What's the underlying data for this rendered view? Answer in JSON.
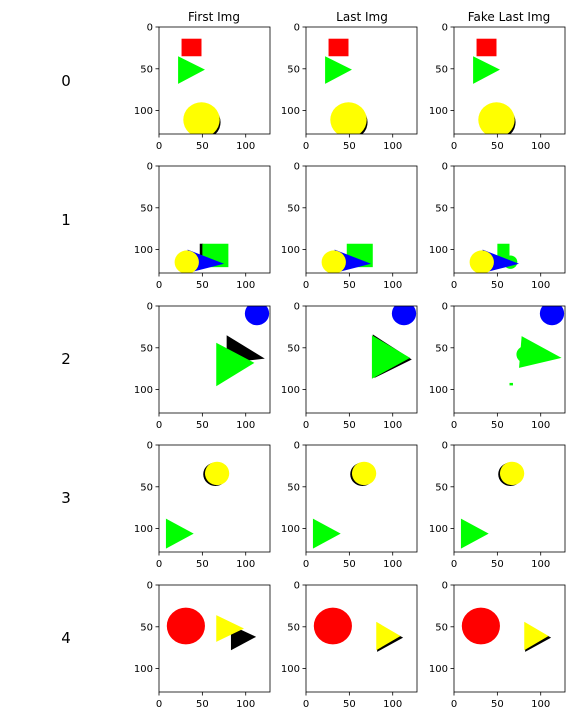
{
  "columns": [
    "First Img",
    "Last Img",
    "Fake Last Img"
  ],
  "rows": [
    "0",
    "1",
    "2",
    "3",
    "4"
  ],
  "axis": {
    "x_range": [
      0,
      128
    ],
    "y_range": [
      0,
      128
    ],
    "x_ticks": [
      0,
      50,
      100
    ],
    "y_ticks": [
      0,
      50,
      100
    ]
  },
  "colors": {
    "red": "#ff0000",
    "green": "#00ff00",
    "yellow": "#ffff00",
    "blue": "#0000ff",
    "black": "#000000"
  },
  "panels": [
    [
      [
        {
          "type": "rect",
          "color": "red",
          "x": 26,
          "y": 14,
          "w": 23,
          "h": 21
        },
        {
          "type": "tri",
          "color": "green",
          "pts": [
            [
              22,
              35
            ],
            [
              22,
              68
            ],
            [
              53,
              51
            ]
          ]
        },
        {
          "type": "circle",
          "color": "black",
          "cx": 51,
          "cy": 114,
          "r": 20
        },
        {
          "type": "circle",
          "color": "yellow",
          "cx": 49,
          "cy": 111,
          "r": 21
        }
      ],
      [
        {
          "type": "rect",
          "color": "red",
          "x": 26,
          "y": 14,
          "w": 23,
          "h": 21
        },
        {
          "type": "tri",
          "color": "green",
          "pts": [
            [
              22,
              35
            ],
            [
              22,
              68
            ],
            [
              53,
              51
            ]
          ]
        },
        {
          "type": "circle",
          "color": "black",
          "cx": 51,
          "cy": 114,
          "r": 20
        },
        {
          "type": "circle",
          "color": "yellow",
          "cx": 49,
          "cy": 111,
          "r": 21
        }
      ],
      [
        {
          "type": "rect",
          "color": "red",
          "x": 26,
          "y": 14,
          "w": 23,
          "h": 21
        },
        {
          "type": "tri",
          "color": "green",
          "pts": [
            [
              22,
              35
            ],
            [
              22,
              68
            ],
            [
              53,
              51
            ]
          ]
        },
        {
          "type": "circle",
          "color": "black",
          "cx": 51,
          "cy": 114,
          "r": 20
        },
        {
          "type": "circle",
          "color": "yellow",
          "cx": 49,
          "cy": 111,
          "r": 21
        }
      ]
    ],
    [
      [
        {
          "type": "rect",
          "color": "black",
          "x": 47,
          "y": 93,
          "w": 4,
          "h": 30
        },
        {
          "type": "rect",
          "color": "green",
          "x": 50,
          "y": 93,
          "w": 30,
          "h": 28
        },
        {
          "type": "tri",
          "color": "blue",
          "pts": [
            [
              33,
              100
            ],
            [
              33,
              128
            ],
            [
              75,
              117
            ]
          ]
        },
        {
          "type": "circle",
          "color": "yellow",
          "cx": 32,
          "cy": 115,
          "r": 14
        }
      ],
      [
        {
          "type": "rect",
          "color": "green",
          "x": 47,
          "y": 93,
          "w": 30,
          "h": 28
        },
        {
          "type": "tri",
          "color": "blue",
          "pts": [
            [
              33,
              100
            ],
            [
              33,
              128
            ],
            [
              75,
              117
            ]
          ]
        },
        {
          "type": "circle",
          "color": "yellow",
          "cx": 32,
          "cy": 115,
          "r": 14
        }
      ],
      [
        {
          "type": "rect",
          "color": "green",
          "x": 50,
          "y": 93,
          "w": 14,
          "h": 20
        },
        {
          "type": "circle",
          "color": "green",
          "cx": 65,
          "cy": 115,
          "r": 8
        },
        {
          "type": "tri",
          "color": "blue",
          "pts": [
            [
              33,
              100
            ],
            [
              33,
              128
            ],
            [
              75,
              117
            ]
          ]
        },
        {
          "type": "circle",
          "color": "yellow",
          "cx": 32,
          "cy": 115,
          "r": 14
        }
      ]
    ],
    [
      [
        {
          "type": "circle",
          "color": "blue",
          "cx": 113,
          "cy": 9,
          "r": 14
        },
        {
          "type": "tri",
          "color": "black",
          "pts": [
            [
              78,
              35
            ],
            [
              78,
              68
            ],
            [
              122,
              63
            ]
          ]
        },
        {
          "type": "tri",
          "color": "green",
          "pts": [
            [
              66,
              44
            ],
            [
              66,
              96
            ],
            [
              110,
              68
            ]
          ]
        }
      ],
      [
        {
          "type": "circle",
          "color": "blue",
          "cx": 113,
          "cy": 9,
          "r": 14
        },
        {
          "type": "tri",
          "color": "black",
          "pts": [
            [
              77,
              34
            ],
            [
              79,
              86
            ],
            [
              122,
              64
            ]
          ]
        },
        {
          "type": "tri",
          "color": "green",
          "pts": [
            [
              76,
              35
            ],
            [
              76,
              87
            ],
            [
              120,
              62
            ]
          ]
        }
      ],
      [
        {
          "type": "circle",
          "color": "blue",
          "cx": 113,
          "cy": 9,
          "r": 14
        },
        {
          "type": "tri",
          "color": "green",
          "pts": [
            [
              78,
              36
            ],
            [
              75,
              74
            ],
            [
              124,
              62
            ]
          ]
        },
        {
          "type": "circle",
          "color": "green",
          "cx": 82,
          "cy": 58,
          "r": 10
        },
        {
          "type": "rect",
          "color": "green",
          "x": 64,
          "y": 92,
          "w": 4,
          "h": 3
        }
      ]
    ],
    [
      [
        {
          "type": "circle",
          "color": "black",
          "cx": 65,
          "cy": 35,
          "r": 14
        },
        {
          "type": "circle",
          "color": "yellow",
          "cx": 67,
          "cy": 34,
          "r": 14
        },
        {
          "type": "tri",
          "color": "green",
          "pts": [
            [
              8,
              88
            ],
            [
              8,
              124
            ],
            [
              40,
              106
            ]
          ]
        }
      ],
      [
        {
          "type": "circle",
          "color": "black",
          "cx": 65,
          "cy": 35,
          "r": 14
        },
        {
          "type": "circle",
          "color": "yellow",
          "cx": 67,
          "cy": 34,
          "r": 14
        },
        {
          "type": "tri",
          "color": "green",
          "pts": [
            [
              8,
              88
            ],
            [
              8,
              124
            ],
            [
              40,
              106
            ]
          ]
        }
      ],
      [
        {
          "type": "circle",
          "color": "black",
          "cx": 65,
          "cy": 35,
          "r": 14
        },
        {
          "type": "circle",
          "color": "yellow",
          "cx": 67,
          "cy": 34,
          "r": 14
        },
        {
          "type": "tri",
          "color": "green",
          "pts": [
            [
              8,
              88
            ],
            [
              8,
              124
            ],
            [
              40,
              106
            ]
          ]
        }
      ]
    ],
    [
      [
        {
          "type": "circle",
          "color": "red",
          "cx": 31,
          "cy": 49,
          "r": 22
        },
        {
          "type": "tri",
          "color": "black",
          "pts": [
            [
              83,
              48
            ],
            [
              83,
              78
            ],
            [
              112,
              62
            ]
          ]
        },
        {
          "type": "tri",
          "color": "yellow",
          "pts": [
            [
              66,
              36
            ],
            [
              66,
              68
            ],
            [
              98,
              52
            ]
          ]
        }
      ],
      [
        {
          "type": "circle",
          "color": "red",
          "cx": 31,
          "cy": 49,
          "r": 22
        },
        {
          "type": "tri",
          "color": "black",
          "pts": [
            [
              82,
              46
            ],
            [
              82,
              80
            ],
            [
              112,
              63
            ]
          ]
        },
        {
          "type": "tri",
          "color": "yellow",
          "pts": [
            [
              81,
              44
            ],
            [
              81,
              78
            ],
            [
              109,
              61
            ]
          ]
        }
      ],
      [
        {
          "type": "circle",
          "color": "red",
          "cx": 31,
          "cy": 49,
          "r": 22
        },
        {
          "type": "tri",
          "color": "black",
          "pts": [
            [
              82,
              46
            ],
            [
              82,
              80
            ],
            [
              112,
              63
            ]
          ]
        },
        {
          "type": "tri",
          "color": "yellow",
          "pts": [
            [
              81,
              44
            ],
            [
              81,
              78
            ],
            [
              109,
              61
            ]
          ]
        }
      ]
    ]
  ]
}
